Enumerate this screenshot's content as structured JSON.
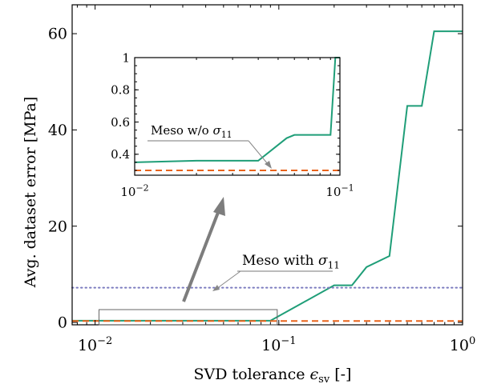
{
  "chart_data": [
    {
      "type": "line",
      "xlabel": "SVD tolerance ε_sv [-]",
      "ylabel": "Avg. dataset error [MPa]",
      "xscale": "log",
      "xlim": [
        0.0075,
        1
      ],
      "ylim": [
        -0.5,
        66
      ],
      "x_ticks": [
        0.01,
        0.1,
        1
      ],
      "x_tick_labels": [
        "10",
        "10",
        "10"
      ],
      "x_tick_exponents": [
        "−2",
        "−1",
        "0"
      ],
      "y_ticks": [
        0,
        20,
        40,
        60
      ],
      "y_tick_labels": [
        "0",
        "20",
        "40",
        "60"
      ],
      "grid": false,
      "series": [
        {
          "name": "",
          "style": "solid",
          "color": "#1f9e78",
          "x": [
            0.0075,
            0.01,
            0.02,
            0.05,
            0.09,
            0.2,
            0.25,
            0.3,
            0.4,
            0.5,
            0.6,
            0.7,
            1.0
          ],
          "y": [
            0.35,
            0.35,
            0.35,
            0.35,
            0.35,
            7.7,
            7.7,
            11.5,
            13.8,
            45.0,
            45.0,
            60.5,
            60.5
          ]
        },
        {
          "name": "Meso w/o σ11",
          "style": "dashed",
          "color": "#e8641c",
          "x": [
            0.0075,
            1.0
          ],
          "y": [
            0.3,
            0.3
          ]
        },
        {
          "name": "Meso with σ11",
          "style": "dotted",
          "color": "#7b7bbf",
          "x": [
            0.0075,
            1.0
          ],
          "y": [
            7.2,
            7.2
          ]
        }
      ],
      "annotations": [
        {
          "text": "Meso with ",
          "symbol": "σ",
          "subscript": "11"
        }
      ]
    },
    {
      "type": "line",
      "role": "inset",
      "xscale": "log",
      "xlim": [
        0.01,
        0.1
      ],
      "ylim": [
        0.27,
        1.0
      ],
      "x_ticks": [
        0.01,
        0.1
      ],
      "x_tick_labels": [
        "10",
        "10"
      ],
      "x_tick_exponents": [
        "−2",
        "−1"
      ],
      "y_ticks": [
        0.4,
        0.6,
        0.8,
        1
      ],
      "y_tick_labels": [
        "0.4",
        "0.6",
        "0.8",
        "1"
      ],
      "series": [
        {
          "name": "",
          "style": "solid",
          "color": "#1f9e78",
          "x": [
            0.01,
            0.02,
            0.04,
            0.055,
            0.06,
            0.09,
            0.095,
            0.1
          ],
          "y": [
            0.35,
            0.36,
            0.36,
            0.5,
            0.52,
            0.52,
            1.0,
            1.0
          ]
        },
        {
          "name": "Meso w/o σ11",
          "style": "dashed",
          "color": "#e8641c",
          "x": [
            0.01,
            0.1
          ],
          "y": [
            0.3,
            0.3
          ]
        }
      ],
      "annotations": [
        {
          "text": "Meso w/o ",
          "symbol": "σ",
          "subscript": "11"
        }
      ]
    }
  ]
}
